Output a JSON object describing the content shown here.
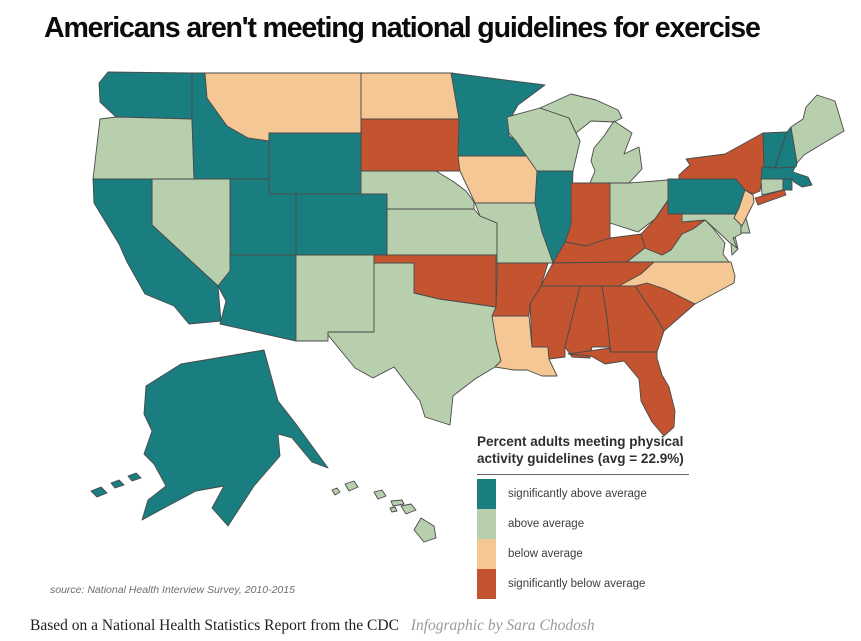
{
  "title": "Americans aren't meeting national guidelines for exercise",
  "map": {
    "source_note": "source: National Health Interview Survey, 2010-2015"
  },
  "legend": {
    "title": "Percent adults meeting physical activity guidelines (avg = 22.9%)",
    "items": [
      {
        "key": "sig_above",
        "label": "significantly above average",
        "color": "#1a7d7f"
      },
      {
        "key": "above",
        "label": "above average",
        "color": "#b7cfac"
      },
      {
        "key": "below",
        "label": "below average",
        "color": "#f5c795"
      },
      {
        "key": "sig_below",
        "label": "significantly below average",
        "color": "#c4542f"
      }
    ]
  },
  "footer": {
    "text": "Based on a National Health Statistics Report from the CDC",
    "credit": "Infographic by Sara Chodosh"
  },
  "chart_data": {
    "type": "choropleth_map",
    "title": "Percent adults meeting physical activity guidelines",
    "average": "22.9%",
    "legend_position": "bottom-right",
    "categories": [
      {
        "key": "sig_above",
        "label": "significantly above average",
        "color": "#1a7d7f"
      },
      {
        "key": "above",
        "label": "above average",
        "color": "#b7cfac"
      },
      {
        "key": "below",
        "label": "below average",
        "color": "#f5c795"
      },
      {
        "key": "sig_below",
        "label": "significantly below average",
        "color": "#c4542f"
      }
    ],
    "states": {
      "WA": "sig_above",
      "OR": "above",
      "CA": "sig_above",
      "NV": "above",
      "ID": "sig_above",
      "MT": "below",
      "WY": "sig_above",
      "UT": "sig_above",
      "CO": "sig_above",
      "AZ": "sig_above",
      "NM": "above",
      "ND": "below",
      "SD": "sig_below",
      "NE": "above",
      "KS": "above",
      "OK": "sig_below",
      "TX": "above",
      "MN": "sig_above",
      "IA": "below",
      "MO": "above",
      "AR": "sig_below",
      "LA": "below",
      "WI": "above",
      "IL": "sig_above",
      "MI": "above",
      "IN": "sig_below",
      "OH": "above",
      "KY": "sig_below",
      "TN": "sig_below",
      "MS": "sig_below",
      "AL": "sig_below",
      "GA": "sig_below",
      "FL": "sig_below",
      "SC": "sig_below",
      "NC": "below",
      "VA": "above",
      "WV": "sig_below",
      "PA": "sig_above",
      "NY": "sig_below",
      "NJ": "below",
      "DE": "above",
      "MD": "above",
      "CT": "above",
      "RI": "sig_above",
      "MA": "sig_above",
      "VT": "sig_above",
      "NH": "sig_above",
      "ME": "above",
      "AK": "sig_above",
      "HI": "above"
    }
  }
}
